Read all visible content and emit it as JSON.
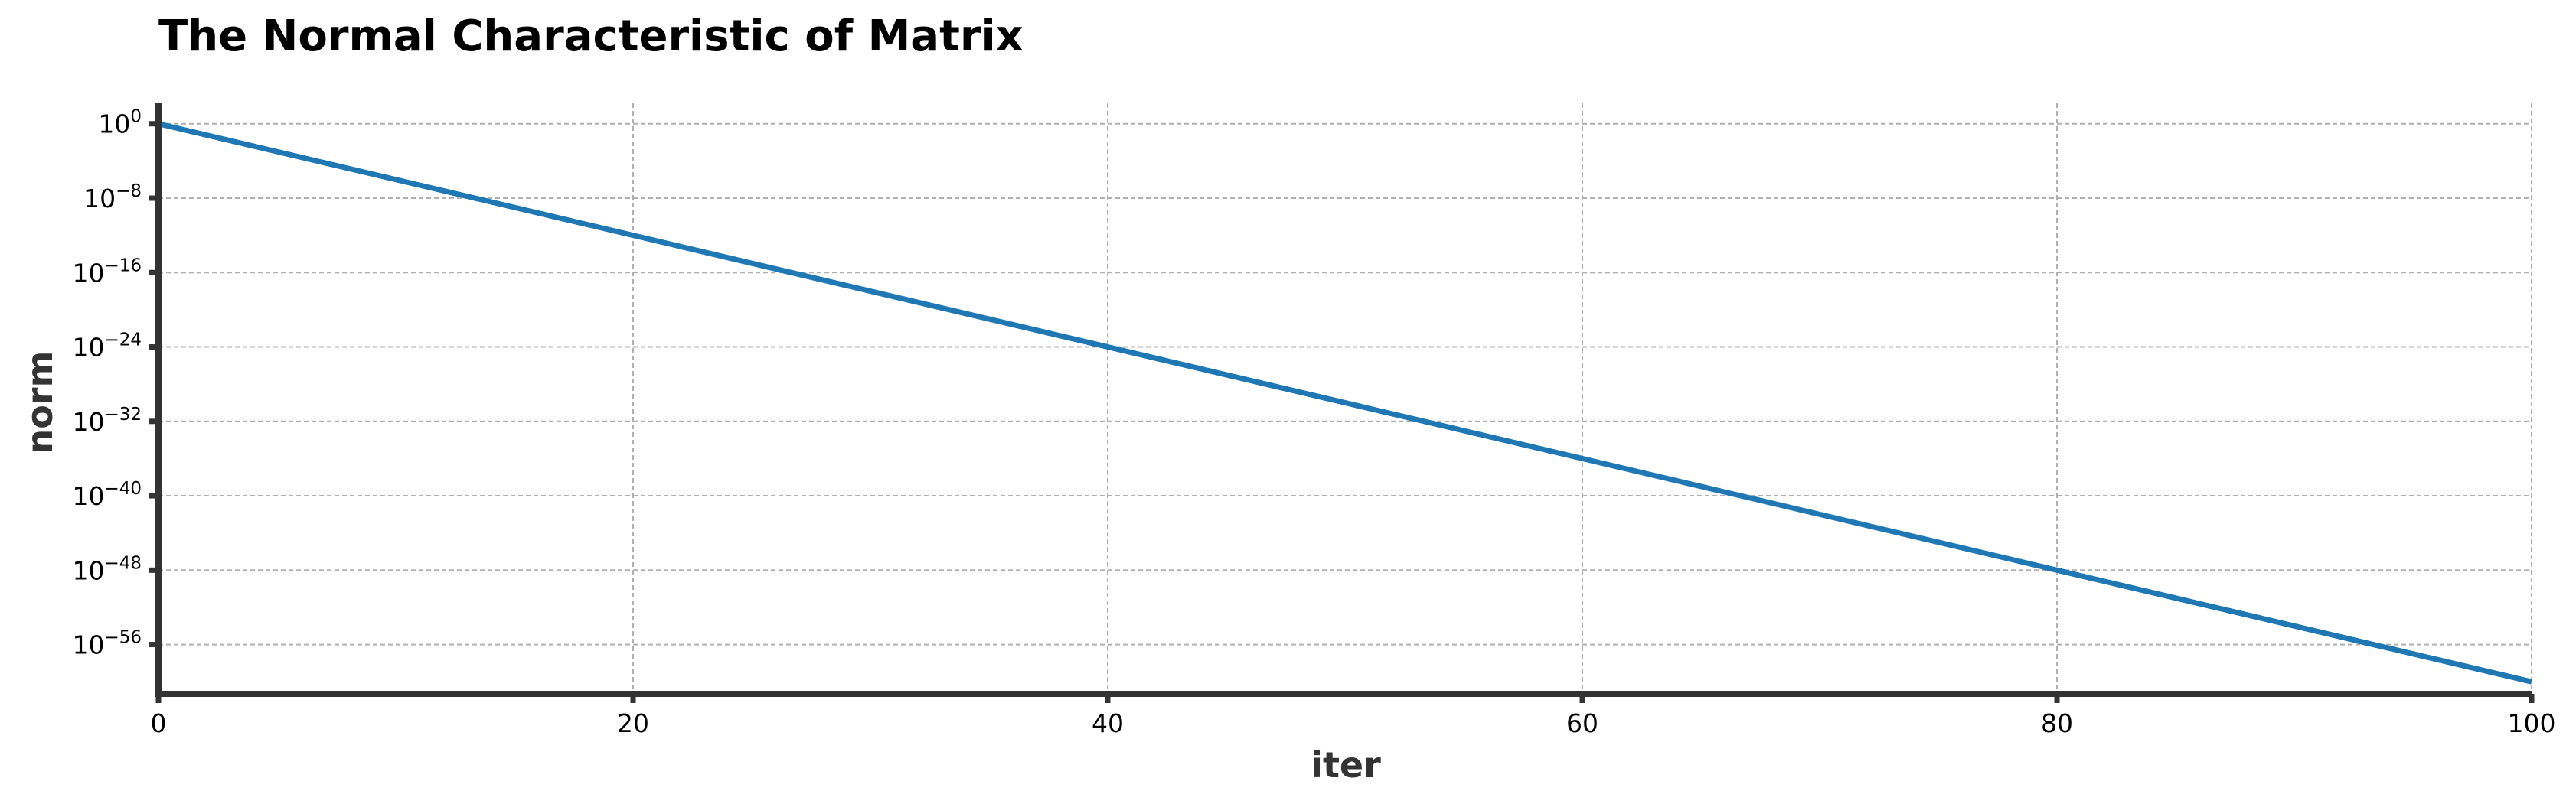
{
  "chart_data": {
    "type": "line",
    "title": "The Normal Characteristic of Matrix",
    "xlabel": "iter",
    "ylabel": "norm",
    "xlim": [
      0,
      100
    ],
    "ylim_exponent": [
      -61.3,
      2.2
    ],
    "yscale": "log",
    "grid": true,
    "colors": {
      "series": "#1f77b4",
      "axis": "#333333",
      "grid": "#b0b0b0"
    },
    "x_ticks": [
      0,
      20,
      40,
      60,
      80,
      100
    ],
    "x_tick_labels": [
      "0",
      "20",
      "40",
      "60",
      "80",
      "100"
    ],
    "y_ticks": [
      {
        "base": "10",
        "exp": "0",
        "value": 1.0
      },
      {
        "base": "10",
        "exp": "−8",
        "value": 1e-08
      },
      {
        "base": "10",
        "exp": "−16",
        "value": 1e-16
      },
      {
        "base": "10",
        "exp": "−24",
        "value": 1e-24
      },
      {
        "base": "10",
        "exp": "−32",
        "value": 1e-32
      },
      {
        "base": "10",
        "exp": "−40",
        "value": 1e-40
      },
      {
        "base": "10",
        "exp": "−48",
        "value": 1e-48
      },
      {
        "base": "10",
        "exp": "−56",
        "value": 1e-56
      }
    ],
    "series": [
      {
        "x": [
          0,
          100
        ],
        "y": [
          1.0,
          1e-60
        ]
      }
    ]
  }
}
